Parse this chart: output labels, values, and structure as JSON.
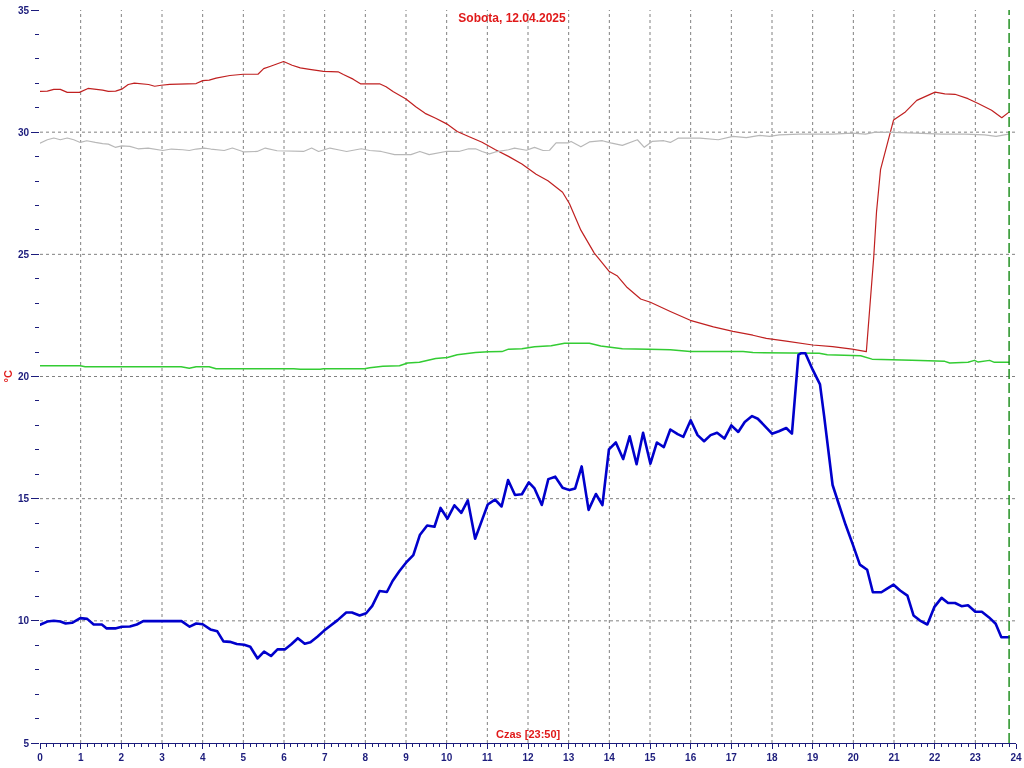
{
  "chart_data": {
    "type": "line",
    "title": "Sobota, 12.04.2025",
    "xlabel": "Czas [23:50]",
    "ylabel": "°C",
    "xlim": [
      0,
      24
    ],
    "ylim": [
      5,
      35
    ],
    "grid": true,
    "xticks": [
      0,
      {
        "value": 0.1667,
        "label": null
      },
      {
        "value": 0.3333,
        "label": null
      },
      {
        "value": 0.5,
        "label": null
      },
      {
        "value": 0.6667,
        "label": null
      },
      {
        "value": 0.8333,
        "label": null
      },
      1,
      {
        "value": 1.1667,
        "label": null
      },
      {
        "value": 1.3333,
        "label": null
      },
      {
        "value": 1.5,
        "label": null
      },
      {
        "value": 1.6667,
        "label": null
      },
      {
        "value": 1.8333,
        "label": null
      },
      2,
      {
        "value": 2.1667,
        "label": null
      },
      {
        "value": 2.3333,
        "label": null
      },
      {
        "value": 2.5,
        "label": null
      },
      {
        "value": 2.6667,
        "label": null
      },
      {
        "value": 2.8333,
        "label": null
      },
      3,
      {
        "value": 3.1667,
        "label": null
      },
      {
        "value": 3.3333,
        "label": null
      },
      {
        "value": 3.5,
        "label": null
      },
      {
        "value": 3.6667,
        "label": null
      },
      {
        "value": 3.8333,
        "label": null
      },
      4,
      {
        "value": 4.1667,
        "label": null
      },
      {
        "value": 4.3333,
        "label": null
      },
      {
        "value": 4.5,
        "label": null
      },
      {
        "value": 4.6667,
        "label": null
      },
      {
        "value": 4.8333,
        "label": null
      },
      5,
      {
        "value": 5.1667,
        "label": null
      },
      {
        "value": 5.3333,
        "label": null
      },
      {
        "value": 5.5,
        "label": null
      },
      {
        "value": 5.6667,
        "label": null
      },
      {
        "value": 5.8333,
        "label": null
      },
      6,
      {
        "value": 6.1667,
        "label": null
      },
      {
        "value": 6.3333,
        "label": null
      },
      {
        "value": 6.5,
        "label": null
      },
      {
        "value": 6.6667,
        "label": null
      },
      {
        "value": 6.8333,
        "label": null
      },
      7,
      {
        "value": 7.1667,
        "label": null
      },
      {
        "value": 7.3333,
        "label": null
      },
      {
        "value": 7.5,
        "label": null
      },
      {
        "value": 7.6667,
        "label": null
      },
      {
        "value": 7.8333,
        "label": null
      },
      8,
      {
        "value": 8.1667,
        "label": null
      },
      {
        "value": 8.3333,
        "label": null
      },
      {
        "value": 8.5,
        "label": null
      },
      {
        "value": 8.6667,
        "label": null
      },
      {
        "value": 8.8333,
        "label": null
      },
      9,
      {
        "value": 9.1667,
        "label": null
      },
      {
        "value": 9.3333,
        "label": null
      },
      {
        "value": 9.5,
        "label": null
      },
      {
        "value": 9.6667,
        "label": null
      },
      {
        "value": 9.8333,
        "label": null
      },
      10,
      {
        "value": 10.1667,
        "label": null
      },
      {
        "value": 10.3333,
        "label": null
      },
      {
        "value": 10.5,
        "label": null
      },
      {
        "value": 10.6667,
        "label": null
      },
      {
        "value": 10.8333,
        "label": null
      },
      11,
      {
        "value": 11.1667,
        "label": null
      },
      {
        "value": 11.3333,
        "label": null
      },
      {
        "value": 11.5,
        "label": null
      },
      {
        "value": 11.6667,
        "label": null
      },
      {
        "value": 11.8333,
        "label": null
      },
      12,
      {
        "value": 12.1667,
        "label": null
      },
      {
        "value": 12.3333,
        "label": null
      },
      {
        "value": 12.5,
        "label": null
      },
      {
        "value": 12.6667,
        "label": null
      },
      {
        "value": 12.8333,
        "label": null
      },
      13,
      {
        "value": 13.1667,
        "label": null
      },
      {
        "value": 13.3333,
        "label": null
      },
      {
        "value": 13.5,
        "label": null
      },
      {
        "value": 13.6667,
        "label": null
      },
      {
        "value": 13.8333,
        "label": null
      },
      14,
      {
        "value": 14.1667,
        "label": null
      },
      {
        "value": 14.3333,
        "label": null
      },
      {
        "value": 14.5,
        "label": null
      },
      {
        "value": 14.6667,
        "label": null
      },
      {
        "value": 14.8333,
        "label": null
      },
      15,
      {
        "value": 15.1667,
        "label": null
      },
      {
        "value": 15.3333,
        "label": null
      },
      {
        "value": 15.5,
        "label": null
      },
      {
        "value": 15.6667,
        "label": null
      },
      {
        "value": 15.8333,
        "label": null
      },
      16,
      {
        "value": 16.1667,
        "label": null
      },
      {
        "value": 16.3333,
        "label": null
      },
      {
        "value": 16.5,
        "label": null
      },
      {
        "value": 16.6667,
        "label": null
      },
      {
        "value": 16.8333,
        "label": null
      },
      17,
      {
        "value": 17.1667,
        "label": null
      },
      {
        "value": 17.3333,
        "label": null
      },
      {
        "value": 17.5,
        "label": null
      },
      {
        "value": 17.6667,
        "label": null
      },
      {
        "value": 17.8333,
        "label": null
      },
      18,
      {
        "value": 18.1667,
        "label": null
      },
      {
        "value": 18.3333,
        "label": null
      },
      {
        "value": 18.5,
        "label": null
      },
      {
        "value": 18.6667,
        "label": null
      },
      {
        "value": 18.8333,
        "label": null
      },
      19,
      {
        "value": 19.1667,
        "label": null
      },
      {
        "value": 19.3333,
        "label": null
      },
      {
        "value": 19.5,
        "label": null
      },
      {
        "value": 19.6667,
        "label": null
      },
      {
        "value": 19.8333,
        "label": null
      },
      20,
      {
        "value": 20.1667,
        "label": null
      },
      {
        "value": 20.3333,
        "label": null
      },
      {
        "value": 20.5,
        "label": null
      },
      {
        "value": 20.6667,
        "label": null
      },
      {
        "value": 20.8333,
        "label": null
      },
      21,
      {
        "value": 21.1667,
        "label": null
      },
      {
        "value": 21.3333,
        "label": null
      },
      {
        "value": 21.5,
        "label": null
      },
      {
        "value": 21.6667,
        "label": null
      },
      {
        "value": 21.8333,
        "label": null
      },
      22,
      {
        "value": 22.1667,
        "label": null
      },
      {
        "value": 22.3333,
        "label": null
      },
      {
        "value": 22.5,
        "label": null
      },
      {
        "value": 22.6667,
        "label": null
      },
      {
        "value": 22.8333,
        "label": null
      },
      23,
      {
        "value": 23.1667,
        "label": null
      },
      {
        "value": 23.3333,
        "label": null
      },
      {
        "value": 23.5,
        "label": null
      },
      {
        "value": 23.6667,
        "label": null
      },
      {
        "value": 23.8333,
        "label": null
      },
      24
    ],
    "yticks": [
      5,
      {
        "value": 6,
        "label": null
      },
      {
        "value": 7,
        "label": null
      },
      {
        "value": 8,
        "label": null
      },
      {
        "value": 9,
        "label": null
      },
      10,
      {
        "value": 11,
        "label": null
      },
      {
        "value": 12,
        "label": null
      },
      {
        "value": 13,
        "label": null
      },
      {
        "value": 14,
        "label": null
      },
      15,
      {
        "value": 16,
        "label": null
      },
      {
        "value": 17,
        "label": null
      },
      {
        "value": 18,
        "label": null
      },
      {
        "value": 19,
        "label": null
      },
      20,
      {
        "value": 21,
        "label": null
      },
      {
        "value": 22,
        "label": null
      },
      {
        "value": 23,
        "label": null
      },
      {
        "value": 24,
        "label": null
      },
      25,
      {
        "value": 26,
        "label": null
      },
      {
        "value": 27,
        "label": null
      },
      {
        "value": 28,
        "label": null
      },
      {
        "value": 29,
        "label": null
      },
      30,
      {
        "value": 31,
        "label": null
      },
      {
        "value": 32,
        "label": null
      },
      {
        "value": 33,
        "label": null
      },
      {
        "value": 34,
        "label": null
      },
      35
    ],
    "ref_lines": [
      {
        "axis": "x",
        "value": 23.83,
        "color": "#008000",
        "line_style": "dashed"
      }
    ],
    "series": [
      {
        "color": "#c02020",
        "x": [
          0,
          0.18,
          0.34,
          0.5,
          0.67,
          0.97,
          1.18,
          1.54,
          1.68,
          1.86,
          2.01,
          2.17,
          2.32,
          2.67,
          2.82,
          2.98,
          3.19,
          3.84,
          4.0,
          4.16,
          4.33,
          4.67,
          5.0,
          5.36,
          5.5,
          5.67,
          5.99,
          6.2,
          6.4,
          6.63,
          6.97,
          7.33,
          7.46,
          7.7,
          7.88,
          8.35,
          8.51,
          8.69,
          9.0,
          9.24,
          9.47,
          9.73,
          10.0,
          10.26,
          10.54,
          10.87,
          11.2,
          11.52,
          11.85,
          12.2,
          12.49,
          12.85,
          13.02,
          13.3,
          13.63,
          13.99,
          14.2,
          14.44,
          14.77,
          15.01,
          15.5,
          15.99,
          16.56,
          17.04,
          17.53,
          17.86,
          18.35,
          19.0,
          19.49,
          19.97,
          20.32,
          20.5,
          20.57,
          20.67,
          20.83,
          20.99,
          21.28,
          21.56,
          22.01,
          22.25,
          22.5,
          22.82,
          23.07,
          23.4,
          23.65,
          23.82
        ],
        "values": [
          31.67,
          31.68,
          31.75,
          31.75,
          31.63,
          31.63,
          31.79,
          31.72,
          31.67,
          31.68,
          31.76,
          31.95,
          32.01,
          31.95,
          31.88,
          31.92,
          31.96,
          31.99,
          32.11,
          32.13,
          32.21,
          32.32,
          32.37,
          32.37,
          32.6,
          32.7,
          32.89,
          32.74,
          32.63,
          32.57,
          32.49,
          32.47,
          32.36,
          32.17,
          31.98,
          31.98,
          31.86,
          31.65,
          31.36,
          31.04,
          30.77,
          30.57,
          30.34,
          30.03,
          29.82,
          29.59,
          29.28,
          29.01,
          28.7,
          28.28,
          28.01,
          27.54,
          27.07,
          25.99,
          25.05,
          24.31,
          24.11,
          23.64,
          23.17,
          23.04,
          22.66,
          22.3,
          22.03,
          21.85,
          21.69,
          21.56,
          21.45,
          21.29,
          21.22,
          21.12,
          21.02,
          24.85,
          26.73,
          28.48,
          29.49,
          30.5,
          30.83,
          31.3,
          31.64,
          31.57,
          31.55,
          31.37,
          31.17,
          30.9,
          30.59,
          30.81
        ]
      },
      {
        "color": "#b8b8b8",
        "x": [
          0,
          0.18,
          0.34,
          0.5,
          0.67,
          0.83,
          0.99,
          1.15,
          1.36,
          1.54,
          1.68,
          1.85,
          2.01,
          2.21,
          2.41,
          2.66,
          3.02,
          3.23,
          3.51,
          3.67,
          3.84,
          4.04,
          4.2,
          4.53,
          4.73,
          5.02,
          5.34,
          5.54,
          5.83,
          6.48,
          6.68,
          6.85,
          7.13,
          7.33,
          7.54,
          7.9,
          8.11,
          8.39,
          8.72,
          9.12,
          9.34,
          9.57,
          9.98,
          10.3,
          10.54,
          10.71,
          10.87,
          11.05,
          11.2,
          11.52,
          11.67,
          11.96,
          12.16,
          12.37,
          12.53,
          12.69,
          12.98,
          13.06,
          13.3,
          13.51,
          13.83,
          14.03,
          14.32,
          14.69,
          14.86,
          15.05,
          15.34,
          15.5,
          15.7,
          16.23,
          16.68,
          17.04,
          17.37,
          17.7,
          17.94,
          18.18,
          18.67,
          19.49,
          19.97,
          20.3,
          20.54,
          20.95,
          21.52,
          22.17,
          22.74,
          23.23,
          23.51,
          23.82
        ],
        "values": [
          29.55,
          29.69,
          29.76,
          29.69,
          29.76,
          29.69,
          29.58,
          29.65,
          29.58,
          29.53,
          29.51,
          29.38,
          29.44,
          29.42,
          29.32,
          29.35,
          29.25,
          29.31,
          29.28,
          29.25,
          29.31,
          29.35,
          29.31,
          29.25,
          29.35,
          29.19,
          29.21,
          29.35,
          29.24,
          29.21,
          29.35,
          29.21,
          29.35,
          29.28,
          29.21,
          29.32,
          29.25,
          29.21,
          29.08,
          29.08,
          29.21,
          29.08,
          29.21,
          29.21,
          29.32,
          29.32,
          29.21,
          29.11,
          29.19,
          29.28,
          29.35,
          29.26,
          29.38,
          29.25,
          29.26,
          29.56,
          29.56,
          29.62,
          29.4,
          29.6,
          29.65,
          29.56,
          29.46,
          29.69,
          29.38,
          29.62,
          29.65,
          29.58,
          29.76,
          29.76,
          29.69,
          29.83,
          29.78,
          29.87,
          29.83,
          29.89,
          29.92,
          29.92,
          29.96,
          29.92,
          30.0,
          29.99,
          29.96,
          29.92,
          29.92,
          29.89,
          29.83,
          29.92
        ]
      },
      {
        "color": "#33cc33",
        "x": [
          0,
          0.99,
          1.11,
          3.47,
          3.67,
          3.84,
          4.16,
          4.33,
          6.24,
          6.4,
          6.89,
          6.97,
          7.98,
          8.11,
          8.43,
          8.84,
          9.04,
          9.33,
          9.73,
          10.02,
          10.26,
          10.71,
          11.03,
          11.36,
          11.52,
          11.85,
          12.16,
          12.57,
          12.9,
          13.51,
          13.79,
          14.32,
          14.97,
          15.5,
          15.99,
          17.29,
          17.53,
          19.16,
          19.36,
          20.18,
          20.46,
          21.44,
          22.25,
          22.37,
          22.82,
          22.98,
          23.07,
          23.35,
          23.47,
          23.82
        ],
        "values": [
          20.44,
          20.44,
          20.4,
          20.4,
          20.34,
          20.4,
          20.4,
          20.32,
          20.32,
          20.3,
          20.3,
          20.32,
          20.32,
          20.36,
          20.42,
          20.44,
          20.55,
          20.58,
          20.74,
          20.78,
          20.89,
          20.98,
          21.01,
          21.02,
          21.12,
          21.14,
          21.22,
          21.26,
          21.36,
          21.36,
          21.25,
          21.14,
          21.12,
          21.09,
          21.02,
          21.02,
          20.98,
          20.95,
          20.89,
          20.85,
          20.71,
          20.66,
          20.62,
          20.55,
          20.58,
          20.66,
          20.59,
          20.66,
          20.58,
          20.58
        ]
      },
      {
        "color": "#0000cc",
        "x": [
          0,
          0.18,
          0.34,
          0.5,
          0.63,
          0.79,
          0.99,
          1.16,
          1.32,
          1.52,
          1.64,
          1.85,
          2.01,
          2.21,
          2.38,
          2.54,
          3.48,
          3.68,
          3.84,
          4.0,
          4.19,
          4.36,
          4.51,
          4.67,
          4.84,
          5.02,
          5.17,
          5.35,
          5.51,
          5.68,
          5.84,
          6.02,
          6.18,
          6.34,
          6.51,
          6.65,
          6.82,
          6.98,
          7.14,
          7.32,
          7.53,
          7.67,
          7.86,
          8.02,
          8.17,
          8.35,
          8.53,
          8.67,
          8.84,
          9.0,
          9.18,
          9.34,
          9.52,
          9.7,
          9.85,
          10.02,
          10.19,
          10.36,
          10.52,
          10.7,
          10.86,
          11.01,
          11.19,
          11.35,
          11.51,
          11.68,
          11.85,
          12.02,
          12.16,
          12.34,
          12.5,
          12.67,
          12.85,
          13.02,
          13.16,
          13.32,
          13.49,
          13.67,
          13.83,
          13.99,
          14.16,
          14.34,
          14.5,
          14.67,
          14.83,
          15.01,
          15.17,
          15.34,
          15.5,
          15.68,
          15.82,
          16.0,
          16.17,
          16.33,
          16.49,
          16.65,
          16.83,
          17.0,
          17.17,
          17.33,
          17.51,
          17.65,
          17.83,
          18.0,
          18.17,
          18.35,
          18.49,
          18.65,
          18.71,
          18.82,
          19.0,
          19.18,
          19.28,
          19.49,
          19.65,
          19.81,
          19.99,
          20.16,
          20.34,
          20.48,
          20.69,
          20.83,
          20.99,
          21.15,
          21.33,
          21.48,
          21.64,
          21.82,
          21.99,
          22.17,
          22.33,
          22.5,
          22.66,
          22.82,
          23.0,
          23.16,
          23.33,
          23.5,
          23.64,
          23.82
        ],
        "values": [
          9.84,
          9.97,
          10.0,
          9.97,
          9.89,
          9.92,
          10.11,
          10.08,
          9.85,
          9.85,
          9.69,
          9.69,
          9.76,
          9.77,
          9.85,
          9.99,
          9.99,
          9.76,
          9.89,
          9.86,
          9.65,
          9.57,
          9.16,
          9.14,
          9.05,
          9.02,
          8.94,
          8.46,
          8.74,
          8.56,
          8.83,
          8.83,
          9.04,
          9.29,
          9.06,
          9.12,
          9.35,
          9.59,
          9.8,
          10.03,
          10.34,
          10.34,
          10.22,
          10.31,
          10.61,
          11.22,
          11.18,
          11.63,
          12.04,
          12.38,
          12.69,
          13.51,
          13.9,
          13.85,
          14.62,
          14.18,
          14.73,
          14.42,
          14.93,
          13.36,
          14.08,
          14.76,
          14.96,
          14.68,
          15.76,
          15.15,
          15.18,
          15.67,
          15.42,
          14.74,
          15.8,
          15.9,
          15.45,
          15.35,
          15.42,
          16.32,
          14.54,
          15.19,
          14.74,
          17.02,
          17.3,
          16.62,
          17.55,
          16.41,
          17.7,
          16.43,
          17.3,
          17.11,
          17.83,
          17.64,
          17.53,
          18.21,
          17.6,
          17.35,
          17.6,
          17.7,
          17.46,
          18.0,
          17.73,
          18.14,
          18.38,
          18.27,
          17.96,
          17.66,
          17.76,
          17.89,
          17.66,
          20.89,
          20.95,
          20.95,
          20.28,
          19.68,
          18.41,
          15.56,
          14.74,
          13.93,
          13.11,
          12.3,
          12.09,
          11.17,
          11.17,
          11.32,
          11.48,
          11.24,
          11.03,
          10.22,
          10.01,
          9.85,
          10.56,
          10.94,
          10.73,
          10.73,
          10.6,
          10.64,
          10.37,
          10.37,
          10.15,
          9.88,
          9.33,
          9.33
        ]
      }
    ]
  }
}
